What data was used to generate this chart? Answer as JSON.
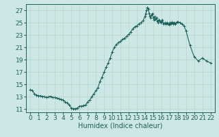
{
  "title": "",
  "xlabel": "Humidex (Indice chaleur)",
  "ylabel": "",
  "background_color": "#cde8e4",
  "grid_color": "#b8d8d2",
  "line_color": "#1a5f5a",
  "marker_color": "#1a5f5a",
  "xlim": [
    -0.5,
    22.5
  ],
  "ylim": [
    10.5,
    28.0
  ],
  "xticks": [
    0,
    1,
    2,
    3,
    4,
    5,
    6,
    7,
    8,
    9,
    10,
    11,
    12,
    13,
    14,
    15,
    16,
    17,
    18,
    19,
    20,
    21,
    22
  ],
  "yticks": [
    11,
    13,
    15,
    17,
    19,
    21,
    23,
    25,
    27
  ],
  "x": [
    0,
    0.25,
    0.5,
    0.75,
    1,
    1.25,
    1.5,
    1.75,
    2,
    2.25,
    2.5,
    2.75,
    3,
    3.25,
    3.5,
    3.75,
    4,
    4.25,
    4.5,
    4.75,
    5,
    5.25,
    5.5,
    5.75,
    6,
    6.25,
    6.5,
    6.75,
    7,
    7.25,
    7.5,
    7.75,
    8,
    8.25,
    8.5,
    8.75,
    9,
    9.25,
    9.5,
    9.75,
    10,
    10.25,
    10.5,
    10.75,
    11,
    11.25,
    11.5,
    11.75,
    12,
    12.25,
    12.5,
    12.75,
    13,
    13.25,
    13.5,
    13.75,
    14,
    14.1,
    14.2,
    14.3,
    14.4,
    14.5,
    14.6,
    14.7,
    14.8,
    14.9,
    15,
    15.1,
    15.2,
    15.3,
    15.4,
    15.5,
    15.6,
    15.7,
    15.8,
    15.9,
    16,
    16.1,
    16.2,
    16.3,
    16.4,
    16.5,
    16.6,
    16.7,
    16.8,
    16.9,
    17,
    17.1,
    17.2,
    17.3,
    17.4,
    17.5,
    17.6,
    17.7,
    17.8,
    17.9,
    18,
    18.25,
    18.5,
    18.75,
    19,
    19.5,
    20,
    20.5,
    21,
    21.5,
    22
  ],
  "y": [
    14.2,
    14.0,
    13.5,
    13.3,
    13.2,
    13.15,
    13.1,
    13.0,
    12.9,
    13.0,
    13.1,
    12.9,
    12.9,
    12.8,
    12.7,
    12.6,
    12.5,
    12.2,
    12.0,
    11.7,
    11.2,
    11.1,
    11.1,
    11.2,
    11.5,
    11.5,
    11.6,
    11.7,
    12.2,
    12.5,
    13.0,
    13.5,
    14.0,
    14.5,
    15.5,
    16.2,
    17.0,
    17.8,
    18.5,
    19.3,
    20.3,
    21.0,
    21.5,
    21.8,
    22.0,
    22.3,
    22.5,
    22.8,
    23.1,
    23.5,
    24.0,
    24.3,
    24.5,
    24.8,
    25.0,
    25.3,
    26.0,
    26.5,
    27.0,
    27.5,
    27.2,
    26.5,
    26.0,
    25.8,
    26.2,
    26.5,
    25.8,
    25.5,
    26.0,
    25.6,
    25.8,
    25.2,
    25.0,
    25.5,
    25.3,
    25.0,
    25.2,
    25.5,
    25.0,
    24.8,
    25.0,
    24.8,
    24.9,
    25.0,
    24.8,
    24.7,
    25.0,
    24.8,
    24.9,
    25.1,
    24.8,
    25.0,
    24.9,
    24.8,
    25.0,
    25.1,
    25.1,
    25.0,
    24.8,
    24.5,
    23.7,
    21.3,
    19.5,
    18.8,
    19.3,
    18.8,
    18.5
  ],
  "fontsize_xlabel": 7,
  "fontsize_ticks": 6.5,
  "marker_size": 2.5,
  "line_width": 0.8
}
